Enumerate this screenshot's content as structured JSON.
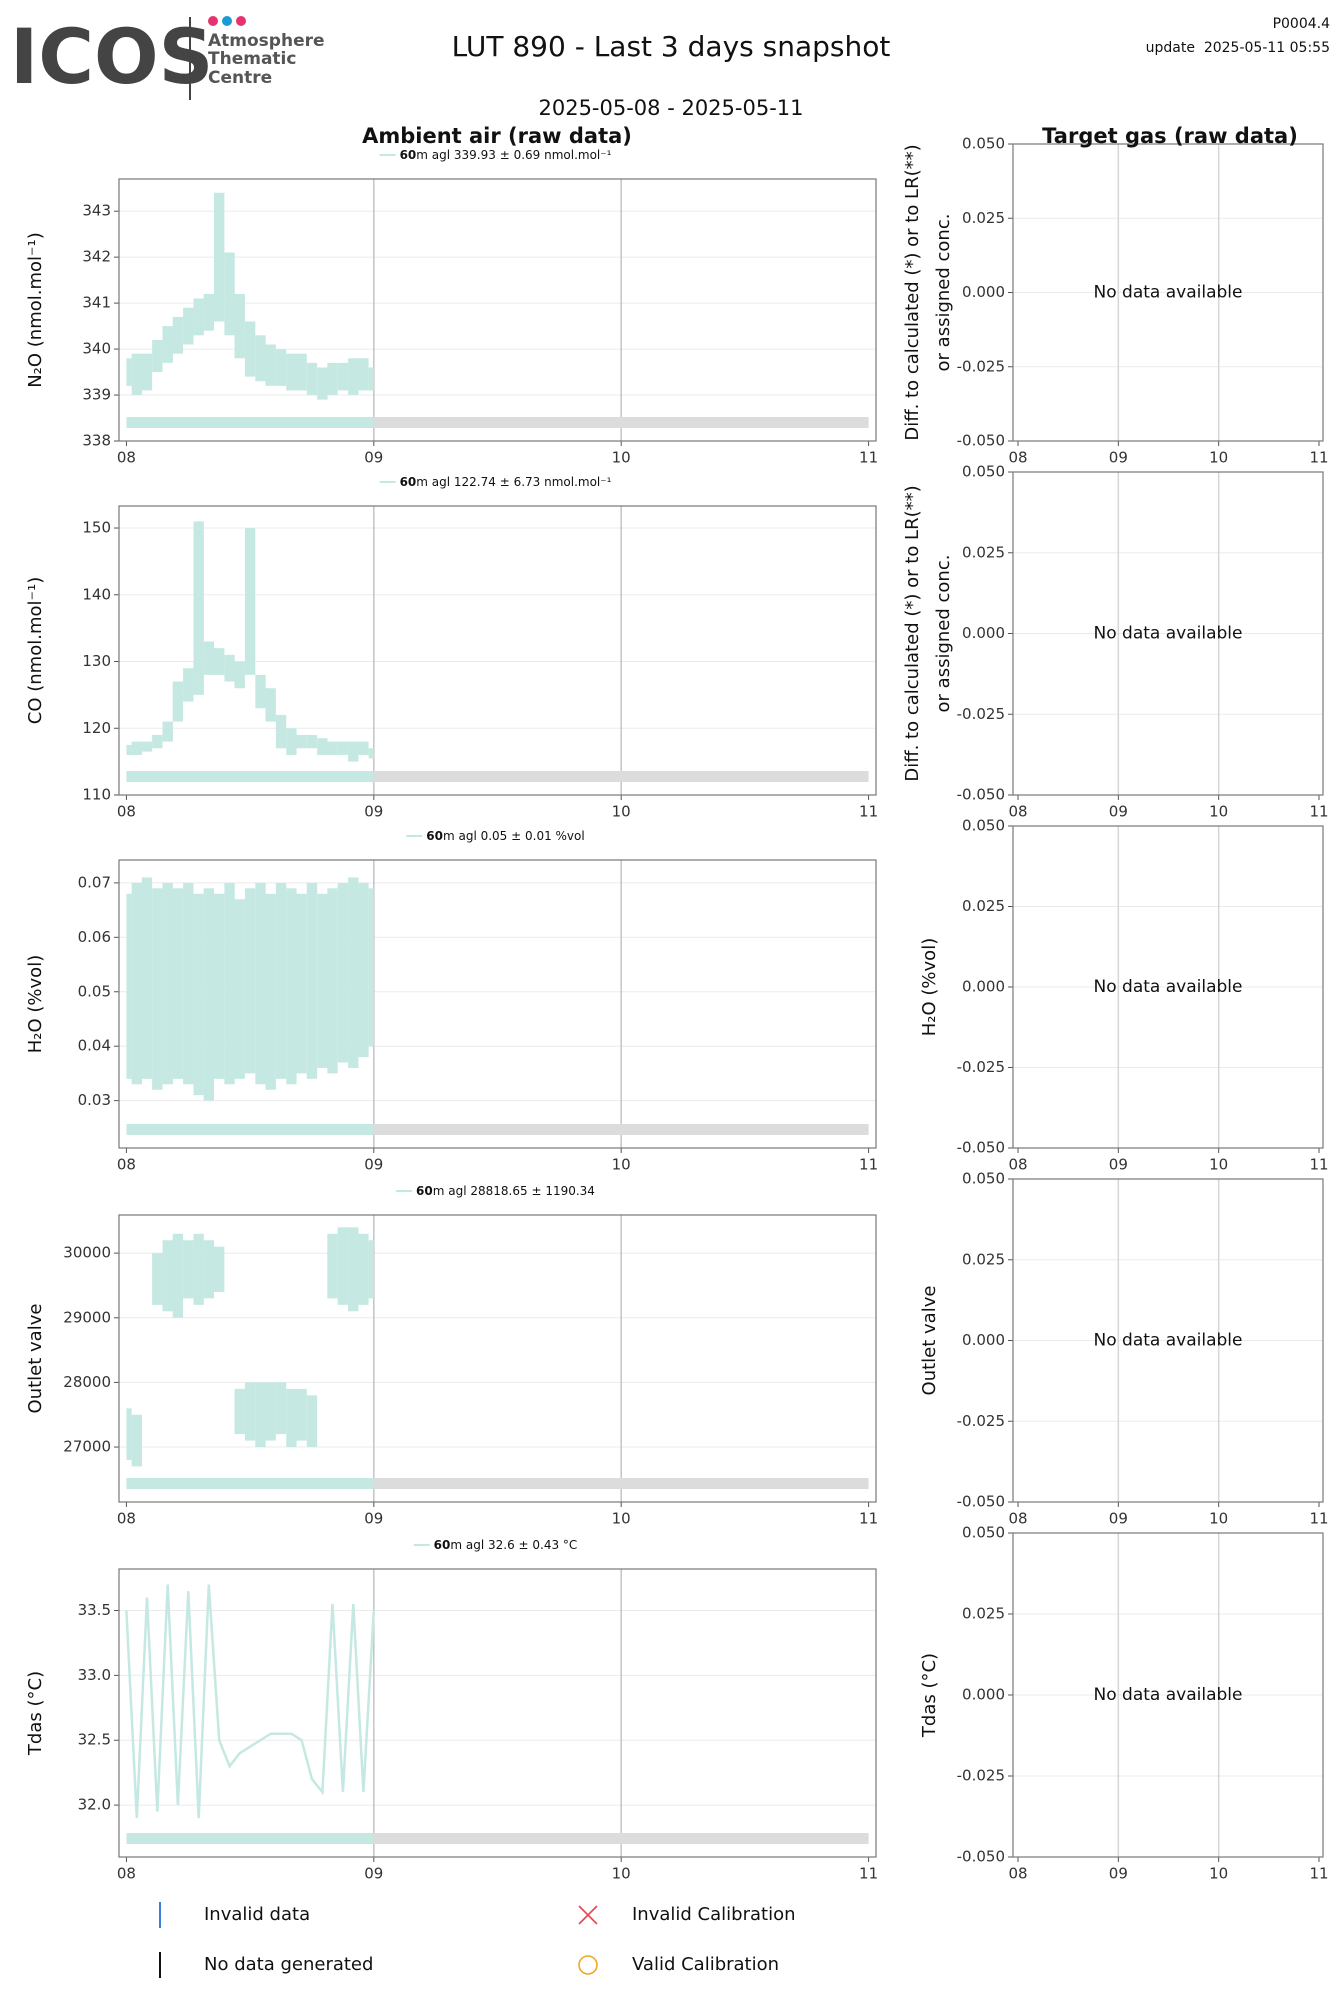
{
  "header": {
    "logo": "ICOS",
    "logo_lines": [
      "Atmosphere",
      "Thematic",
      "Centre"
    ],
    "title": "LUT 890 - Last 3 days snapshot",
    "subtitle": "2025-05-08 - 2025-05-11",
    "version": "P0004.4",
    "update": "update  2025-05-11 05:55"
  },
  "legend": [
    {
      "label": "Invalid data",
      "color": "#3b7fd9",
      "symbol": "vline"
    },
    {
      "label": "Invalid Calibration",
      "color": "#e8474f",
      "symbol": "cross"
    },
    {
      "label": "No data generated",
      "color": "#111111",
      "symbol": "vline"
    },
    {
      "label": "Valid Calibration",
      "color": "#f5a623",
      "symbol": "circle"
    }
  ],
  "chart_data": [
    {
      "type": "band",
      "title": "Ambient air (raw data)",
      "ylabel": [
        "N₂O (nmol.mol⁻¹)"
      ],
      "x": [
        8,
        8.042,
        8.083,
        8.125,
        8.167,
        8.208,
        8.25,
        8.292,
        8.333,
        8.375,
        8.417,
        8.458,
        8.5,
        8.542,
        8.583,
        8.625,
        8.667,
        8.708,
        8.75,
        8.792,
        8.833,
        8.875,
        8.917,
        8.958,
        9
      ],
      "xlim": [
        7.97,
        11.03
      ],
      "xticks": [
        {
          "value": 8,
          "label": "08"
        },
        {
          "value": 9,
          "label": "09"
        },
        {
          "value": 10,
          "label": "10"
        },
        {
          "value": 11,
          "label": "11"
        }
      ],
      "ylim": [
        338,
        343.7
      ],
      "yticks": [
        338,
        339,
        340,
        341,
        342,
        343
      ],
      "grid": true,
      "series": [
        {
          "name": "60",
          "label": "m agl 339.93 ± 0.69 nmol.mol⁻¹",
          "color": "#c5e9e2",
          "low": [
            339.2,
            339.0,
            339.1,
            339.5,
            339.7,
            339.9,
            340.1,
            340.3,
            340.4,
            340.6,
            340.3,
            339.8,
            339.4,
            339.3,
            339.2,
            339.2,
            339.1,
            339.1,
            339.0,
            338.9,
            339.0,
            339.1,
            339.0,
            339.1,
            339.1
          ],
          "high": [
            339.8,
            339.9,
            339.9,
            340.2,
            340.5,
            340.7,
            340.9,
            341.1,
            341.2,
            343.4,
            342.1,
            341.2,
            340.6,
            340.3,
            340.1,
            340.0,
            339.9,
            339.9,
            339.7,
            339.6,
            339.7,
            339.7,
            339.8,
            339.8,
            339.6
          ]
        }
      ]
    },
    {
      "type": "band",
      "ylabel": [
        "CO (nmol.mol⁻¹)"
      ],
      "x": [
        8,
        8.042,
        8.083,
        8.125,
        8.167,
        8.208,
        8.25,
        8.292,
        8.333,
        8.375,
        8.417,
        8.458,
        8.5,
        8.542,
        8.583,
        8.625,
        8.667,
        8.708,
        8.75,
        8.792,
        8.833,
        8.875,
        8.917,
        8.958,
        9
      ],
      "xlim": [
        7.97,
        11.03
      ],
      "xticks": [
        {
          "value": 8,
          "label": "08"
        },
        {
          "value": 9,
          "label": "09"
        },
        {
          "value": 10,
          "label": "10"
        },
        {
          "value": 11,
          "label": "11"
        }
      ],
      "ylim": [
        110,
        153.3
      ],
      "yticks": [
        110,
        120,
        130,
        140,
        150
      ],
      "grid": true,
      "series": [
        {
          "name": "60",
          "label": "m agl 122.74 ± 6.73 nmol.mol⁻¹",
          "color": "#c5e9e2",
          "low": [
            116,
            116,
            116.5,
            117,
            118,
            121,
            124,
            125,
            128,
            128,
            127,
            126,
            128,
            123,
            121,
            117,
            116,
            117,
            117,
            116,
            116,
            116,
            115,
            116,
            115.5
          ],
          "high": [
            117.5,
            118,
            118,
            119,
            121,
            127,
            129,
            151,
            133,
            132,
            131,
            130,
            150,
            128,
            126,
            122,
            120,
            119,
            119,
            118.5,
            118,
            118,
            118,
            118,
            117
          ]
        }
      ]
    },
    {
      "type": "band",
      "ylabel": [
        "H₂O (%vol)"
      ],
      "x": [
        8,
        8.042,
        8.083,
        8.125,
        8.167,
        8.208,
        8.25,
        8.292,
        8.333,
        8.375,
        8.417,
        8.458,
        8.5,
        8.542,
        8.583,
        8.625,
        8.667,
        8.708,
        8.75,
        8.792,
        8.833,
        8.875,
        8.917,
        8.958,
        9
      ],
      "xlim": [
        7.97,
        11.03
      ],
      "xticks": [
        {
          "value": 8,
          "label": "08"
        },
        {
          "value": 9,
          "label": "09"
        },
        {
          "value": 10,
          "label": "10"
        },
        {
          "value": 11,
          "label": "11"
        }
      ],
      "ylim": [
        0.0213,
        0.0742
      ],
      "yticks": [
        0.03,
        0.04,
        0.05,
        0.06,
        0.07
      ],
      "grid": true,
      "series": [
        {
          "name": "60",
          "label": "m agl 0.05 ± 0.01 %vol",
          "color": "#c5e9e2",
          "low": [
            0.034,
            0.033,
            0.034,
            0.032,
            0.033,
            0.034,
            0.033,
            0.031,
            0.03,
            0.034,
            0.033,
            0.034,
            0.035,
            0.033,
            0.032,
            0.034,
            0.033,
            0.035,
            0.034,
            0.036,
            0.035,
            0.037,
            0.036,
            0.038,
            0.04
          ],
          "high": [
            0.068,
            0.07,
            0.071,
            0.069,
            0.07,
            0.069,
            0.07,
            0.068,
            0.069,
            0.068,
            0.07,
            0.067,
            0.069,
            0.07,
            0.068,
            0.07,
            0.069,
            0.068,
            0.07,
            0.068,
            0.069,
            0.07,
            0.071,
            0.07,
            0.069
          ]
        }
      ]
    },
    {
      "type": "band",
      "ylabel": [
        "Outlet valve"
      ],
      "x": [
        8,
        8.042,
        8.083,
        8.125,
        8.167,
        8.208,
        8.25,
        8.292,
        8.333,
        8.375,
        8.417,
        8.458,
        8.5,
        8.542,
        8.583,
        8.625,
        8.667,
        8.708,
        8.75,
        8.792,
        8.833,
        8.875,
        8.917,
        8.958,
        9
      ],
      "xlim": [
        7.97,
        11.03
      ],
      "xticks": [
        {
          "value": 8,
          "label": "08"
        },
        {
          "value": 9,
          "label": "09"
        },
        {
          "value": 10,
          "label": "10"
        },
        {
          "value": 11,
          "label": "11"
        }
      ],
      "ylim": [
        26150,
        30590
      ],
      "yticks": [
        27000,
        28000,
        29000,
        30000
      ],
      "grid": true,
      "series": [
        {
          "name": "60",
          "label": "m agl 28818.65 ± 1190.34",
          "color": "#c5e9e2",
          "low": [
            26800,
            26700,
            null,
            29200,
            29100,
            29000,
            29300,
            29200,
            29300,
            29400,
            null,
            27200,
            27100,
            27000,
            27100,
            27200,
            27000,
            27100,
            27000,
            null,
            29300,
            29200,
            29100,
            29200,
            29300
          ],
          "high": [
            27600,
            27500,
            null,
            30000,
            30200,
            30300,
            30200,
            30300,
            30200,
            30100,
            null,
            27900,
            28000,
            28000,
            28000,
            28000,
            27900,
            27900,
            27800,
            null,
            30300,
            30400,
            30400,
            30300,
            30200
          ]
        }
      ]
    },
    {
      "type": "line",
      "ylabel": [
        "Tdas (°C)"
      ],
      "x": [
        8,
        8.042,
        8.083,
        8.125,
        8.167,
        8.208,
        8.25,
        8.292,
        8.333,
        8.375,
        8.417,
        8.458,
        8.5,
        8.542,
        8.583,
        8.625,
        8.667,
        8.708,
        8.75,
        8.792,
        8.833,
        8.875,
        8.917,
        8.958,
        9
      ],
      "xlim": [
        7.97,
        11.03
      ],
      "xticks": [
        {
          "value": 8,
          "label": "08"
        },
        {
          "value": 9,
          "label": "09"
        },
        {
          "value": 10,
          "label": "10"
        },
        {
          "value": 11,
          "label": "11"
        }
      ],
      "ylim": [
        31.6,
        33.82
      ],
      "yticks": [
        {
          "value": 32,
          "label": "32.0"
        },
        32.5,
        {
          "value": 33,
          "label": "33.0"
        },
        33.5
      ],
      "grid": true,
      "series": [
        {
          "name": "60",
          "label": "m agl 32.6 ± 0.43 °C",
          "color": "#c5e9e2",
          "values": [
            33.5,
            31.9,
            33.6,
            31.95,
            33.7,
            32.0,
            33.65,
            31.9,
            33.7,
            32.5,
            32.3,
            32.4,
            32.45,
            32.5,
            32.55,
            32.55,
            32.55,
            32.5,
            32.2,
            32.1,
            33.55,
            32.1,
            33.55,
            32.1,
            33.5
          ]
        }
      ]
    },
    {
      "type": "empty",
      "title": "Target gas (raw data)",
      "ylabel": [
        "Diff. to calculated (*) or to LR(**)",
        "or assigned conc."
      ],
      "annotation": "No data available",
      "xlim": [
        7.95,
        11.04
      ],
      "xticks": [
        {
          "value": 8,
          "label": "08"
        },
        {
          "value": 9,
          "label": "09"
        },
        {
          "value": 10,
          "label": "10"
        },
        {
          "value": 11,
          "label": "11"
        }
      ],
      "ylim": [
        -0.05,
        0.05
      ],
      "yticks": [
        {
          "value": -0.05,
          "label": "-0.050"
        },
        {
          "value": -0.025,
          "label": "-0.025"
        },
        {
          "value": 0,
          "label": "0.000"
        },
        {
          "value": 0.025,
          "label": "0.025"
        },
        {
          "value": 0.05,
          "label": "0.050"
        }
      ],
      "grid": true
    },
    {
      "type": "empty",
      "ylabel": [
        "Diff. to calculated (*) or to LR(**)",
        "or assigned conc."
      ],
      "annotation": "No data available",
      "xlim": [
        7.95,
        11.04
      ],
      "xticks": [
        {
          "value": 8,
          "label": "08"
        },
        {
          "value": 9,
          "label": "09"
        },
        {
          "value": 10,
          "label": "10"
        },
        {
          "value": 11,
          "label": "11"
        }
      ],
      "ylim": [
        -0.05,
        0.05
      ],
      "yticks": [
        {
          "value": -0.05,
          "label": "-0.050"
        },
        {
          "value": -0.025,
          "label": "-0.025"
        },
        {
          "value": 0,
          "label": "0.000"
        },
        {
          "value": 0.025,
          "label": "0.025"
        },
        {
          "value": 0.05,
          "label": "0.050"
        }
      ],
      "grid": true
    },
    {
      "type": "empty",
      "ylabel": [
        "H₂O (%vol)"
      ],
      "annotation": "No data available",
      "xlim": [
        7.95,
        11.04
      ],
      "xticks": [
        {
          "value": 8,
          "label": "08"
        },
        {
          "value": 9,
          "label": "09"
        },
        {
          "value": 10,
          "label": "10"
        },
        {
          "value": 11,
          "label": "11"
        }
      ],
      "ylim": [
        -0.05,
        0.05
      ],
      "yticks": [
        {
          "value": -0.05,
          "label": "-0.050"
        },
        {
          "value": -0.025,
          "label": "-0.025"
        },
        {
          "value": 0,
          "label": "0.000"
        },
        {
          "value": 0.025,
          "label": "0.025"
        },
        {
          "value": 0.05,
          "label": "0.050"
        }
      ],
      "grid": true
    },
    {
      "type": "empty",
      "ylabel": [
        "Outlet valve"
      ],
      "annotation": "No data available",
      "xlim": [
        7.95,
        11.04
      ],
      "xticks": [
        {
          "value": 8,
          "label": "08"
        },
        {
          "value": 9,
          "label": "09"
        },
        {
          "value": 10,
          "label": "10"
        },
        {
          "value": 11,
          "label": "11"
        }
      ],
      "ylim": [
        -0.05,
        0.05
      ],
      "yticks": [
        {
          "value": -0.05,
          "label": "-0.050"
        },
        {
          "value": -0.025,
          "label": "-0.025"
        },
        {
          "value": 0,
          "label": "0.000"
        },
        {
          "value": 0.025,
          "label": "0.025"
        },
        {
          "value": 0.05,
          "label": "0.050"
        }
      ],
      "grid": true
    },
    {
      "type": "empty",
      "ylabel": [
        "Tdas (°C)"
      ],
      "annotation": "No data available",
      "xlim": [
        7.95,
        11.04
      ],
      "xticks": [
        {
          "value": 8,
          "label": "08"
        },
        {
          "value": 9,
          "label": "09"
        },
        {
          "value": 10,
          "label": "10"
        },
        {
          "value": 11,
          "label": "11"
        }
      ],
      "ylim": [
        -0.05,
        0.05
      ],
      "yticks": [
        {
          "value": -0.05,
          "label": "-0.050"
        },
        {
          "value": -0.025,
          "label": "-0.025"
        },
        {
          "value": 0,
          "label": "0.000"
        },
        {
          "value": 0.025,
          "label": "0.025"
        },
        {
          "value": 0.05,
          "label": "0.050"
        }
      ],
      "grid": true
    }
  ]
}
